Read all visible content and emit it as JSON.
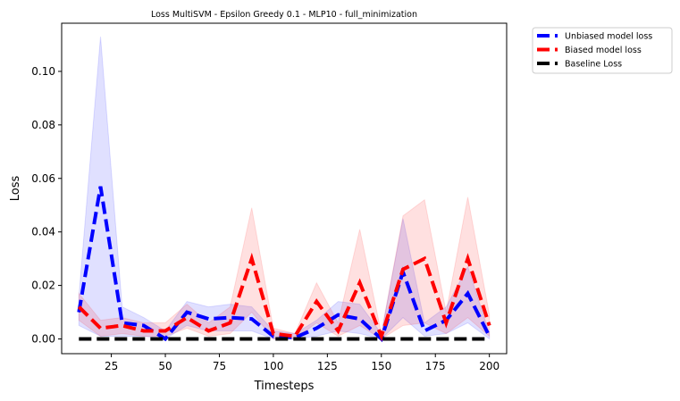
{
  "chart_data": {
    "type": "line",
    "title": "Loss MultiSVM - Epsilon Greedy 0.1 - MLP10 - full_minimization",
    "xlabel": "Timesteps",
    "ylabel": "Loss",
    "xlim": [
      2,
      208
    ],
    "ylim": [
      -0.0055,
      0.118
    ],
    "xticks": [
      25,
      50,
      75,
      100,
      125,
      150,
      175,
      200
    ],
    "yticks": [
      0.0,
      0.02,
      0.04,
      0.06,
      0.08,
      0.1
    ],
    "xtick_labels": [
      "25",
      "50",
      "75",
      "100",
      "125",
      "150",
      "175",
      "200"
    ],
    "ytick_labels": [
      "0.00",
      "0.02",
      "0.04",
      "0.06",
      "0.08",
      "0.10"
    ],
    "grid": false,
    "legend_position": "outside top-right",
    "x": [
      10,
      20,
      30,
      40,
      50,
      60,
      70,
      80,
      90,
      100,
      110,
      120,
      130,
      140,
      150,
      160,
      170,
      180,
      190,
      200
    ],
    "series": [
      {
        "name": "Unbiased model loss",
        "color": "#0000ff",
        "band_color": "#0000ff",
        "values": [
          0.01,
          0.057,
          0.006,
          0.005,
          0.0,
          0.01,
          0.0075,
          0.008,
          0.0075,
          0.001,
          0.0005,
          0.004,
          0.009,
          0.0075,
          0.0,
          0.025,
          0.003,
          0.007,
          0.017,
          0.001
        ],
        "lower": [
          0.005,
          0.001,
          0.001,
          0.001,
          0.0,
          0.005,
          0.003,
          0.003,
          0.003,
          0.0,
          0.0,
          0.001,
          0.003,
          0.002,
          0.0,
          0.008,
          0.001,
          0.002,
          0.006,
          0.0
        ],
        "upper": [
          0.016,
          0.113,
          0.012,
          0.008,
          0.003,
          0.014,
          0.012,
          0.013,
          0.012,
          0.003,
          0.002,
          0.007,
          0.014,
          0.013,
          0.002,
          0.045,
          0.006,
          0.012,
          0.027,
          0.002
        ]
      },
      {
        "name": "Biased model loss",
        "color": "#ff0000",
        "band_color": "#ff0000",
        "values": [
          0.012,
          0.004,
          0.005,
          0.003,
          0.003,
          0.008,
          0.003,
          0.006,
          0.03,
          0.002,
          0.001,
          0.014,
          0.003,
          0.021,
          0.001,
          0.026,
          0.03,
          0.006,
          0.03,
          0.005
        ],
        "lower": [
          0.007,
          0.001,
          0.002,
          0.001,
          0.001,
          0.004,
          0.001,
          0.002,
          0.01,
          0.0,
          0.0,
          0.006,
          0.001,
          0.005,
          0.0,
          0.005,
          0.006,
          0.002,
          0.008,
          0.001
        ],
        "upper": [
          0.017,
          0.007,
          0.008,
          0.006,
          0.006,
          0.013,
          0.006,
          0.012,
          0.049,
          0.004,
          0.002,
          0.021,
          0.006,
          0.041,
          0.002,
          0.046,
          0.052,
          0.01,
          0.053,
          0.009
        ]
      },
      {
        "name": "Baseline Loss",
        "color": "#000000",
        "values": [
          0,
          0,
          0,
          0,
          0,
          0,
          0,
          0,
          0,
          0,
          0,
          0,
          0,
          0,
          0,
          0,
          0,
          0,
          0,
          0
        ]
      }
    ]
  }
}
